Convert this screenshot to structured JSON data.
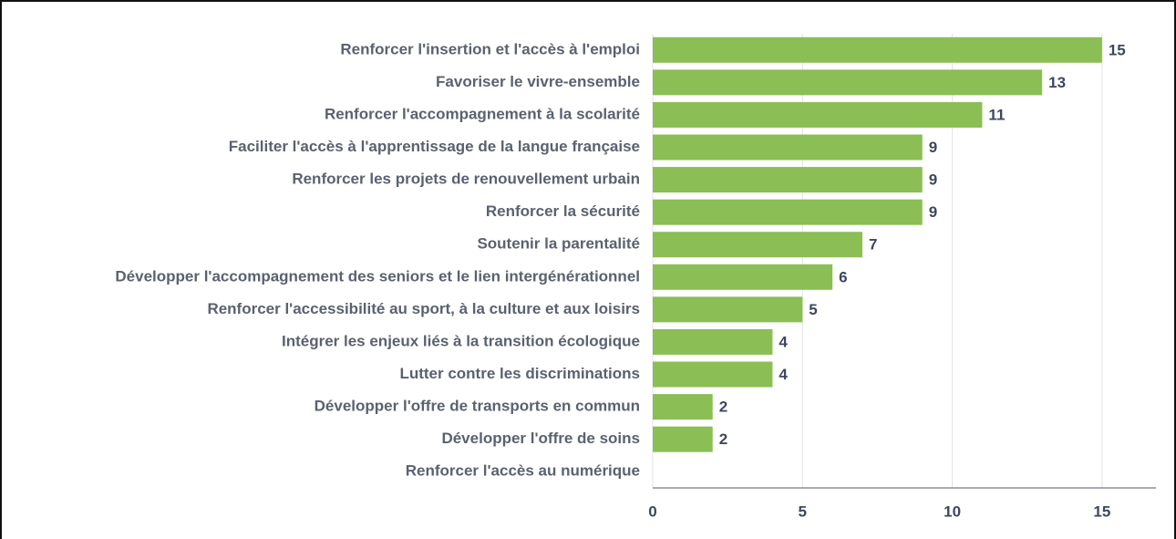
{
  "chart_data": {
    "type": "barh",
    "categories": [
      "Renforcer l'insertion et l'accès à l'emploi",
      "Favoriser le vivre-ensemble",
      "Renforcer l'accompagnement à la scolarité",
      "Faciliter l'accès à l'apprentissage de la langue française",
      "Renforcer les projets de renouvellement urbain",
      "Renforcer la sécurité",
      "Soutenir la parentalité",
      "Développer l'accompagnement des seniors et le lien intergénérationnel",
      "Renforcer l'accessibilité au sport, à la culture et aux loisirs",
      "Intégrer les enjeux liés à la transition écologique",
      "Lutter contre les discriminations",
      "Développer l'offre de transports en commun",
      "Développer l'offre de soins",
      "Renforcer l'accès au numérique"
    ],
    "values": [
      15,
      13,
      11,
      9,
      9,
      9,
      7,
      6,
      5,
      4,
      4,
      2,
      2,
      null
    ],
    "color": "#8bbe55",
    "xlim": [
      0,
      16.8
    ],
    "xticks": [
      0,
      5,
      10,
      15
    ],
    "grid": true
  }
}
